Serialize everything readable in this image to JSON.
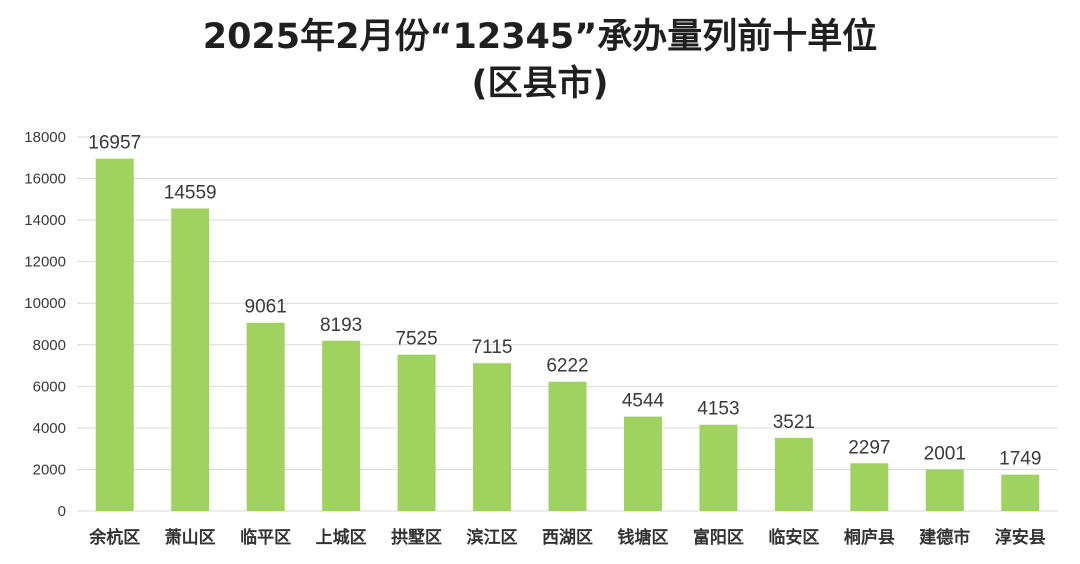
{
  "chart_data": {
    "type": "bar",
    "title_lines": [
      "2025年2月份“12345”承办量列前十单位",
      "(区县市)"
    ],
    "categories": [
      "余杭区",
      "萧山区",
      "临平区",
      "上城区",
      "拱墅区",
      "滨江区",
      "西湖区",
      "钱塘区",
      "富阳区",
      "临安区",
      "桐庐县",
      "建德市",
      "淳安县"
    ],
    "values": [
      16957,
      14559,
      9061,
      8193,
      7525,
      7115,
      6222,
      4544,
      4153,
      3521,
      2297,
      2001,
      1749
    ],
    "ylim": [
      0,
      18000
    ],
    "yticks": [
      0,
      2000,
      4000,
      6000,
      8000,
      10000,
      12000,
      14000,
      16000,
      18000
    ],
    "grid": true,
    "legend": "none",
    "bar_color": "#9fd25f",
    "grid_color": "#d9d9d9"
  }
}
